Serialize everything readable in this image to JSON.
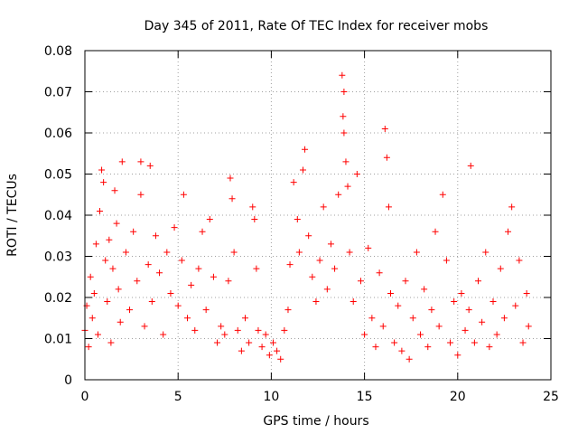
{
  "chart_data": {
    "type": "scatter",
    "title": "Day 345 of 2011, Rate Of TEC Index for receiver mobs",
    "xlabel": "GPS time / hours",
    "ylabel": "ROTI / TECUs",
    "xlim": [
      0,
      25
    ],
    "ylim": [
      0,
      0.08
    ],
    "x_ticks": [
      0,
      5,
      10,
      15,
      20,
      25
    ],
    "x_tick_labels": [
      "0",
      "5",
      "10",
      "15",
      "20",
      "25"
    ],
    "y_ticks": [
      0,
      0.01,
      0.02,
      0.03,
      0.04,
      0.05,
      0.06,
      0.07,
      0.08
    ],
    "y_tick_labels": [
      "0",
      "0.01",
      "0.02",
      "0.03",
      "0.04",
      "0.05",
      "0.06",
      "0.07",
      "0.08"
    ],
    "grid": true,
    "marker": "plus",
    "color": "#ff0000",
    "series": [
      {
        "points": [
          [
            0.0,
            0.012
          ],
          [
            0.1,
            0.018
          ],
          [
            0.2,
            0.008
          ],
          [
            0.3,
            0.025
          ],
          [
            0.4,
            0.015
          ],
          [
            0.5,
            0.021
          ],
          [
            0.6,
            0.033
          ],
          [
            0.7,
            0.011
          ],
          [
            0.8,
            0.041
          ],
          [
            0.9,
            0.051
          ],
          [
            1.0,
            0.048
          ],
          [
            1.1,
            0.029
          ],
          [
            1.2,
            0.019
          ],
          [
            1.3,
            0.034
          ],
          [
            1.4,
            0.009
          ],
          [
            1.5,
            0.027
          ],
          [
            1.6,
            0.046
          ],
          [
            1.7,
            0.038
          ],
          [
            1.8,
            0.022
          ],
          [
            1.9,
            0.014
          ],
          [
            2.0,
            0.053
          ],
          [
            2.2,
            0.031
          ],
          [
            2.4,
            0.017
          ],
          [
            2.6,
            0.036
          ],
          [
            2.8,
            0.024
          ],
          [
            3.0,
            0.045
          ],
          [
            3.0,
            0.053
          ],
          [
            3.2,
            0.013
          ],
          [
            3.4,
            0.028
          ],
          [
            3.5,
            0.052
          ],
          [
            3.6,
            0.019
          ],
          [
            3.8,
            0.035
          ],
          [
            4.0,
            0.026
          ],
          [
            4.2,
            0.011
          ],
          [
            4.4,
            0.031
          ],
          [
            4.6,
            0.021
          ],
          [
            4.8,
            0.037
          ],
          [
            5.0,
            0.018
          ],
          [
            5.2,
            0.029
          ],
          [
            5.3,
            0.045
          ],
          [
            5.5,
            0.015
          ],
          [
            5.7,
            0.023
          ],
          [
            5.9,
            0.012
          ],
          [
            6.1,
            0.027
          ],
          [
            6.3,
            0.036
          ],
          [
            6.5,
            0.017
          ],
          [
            6.7,
            0.039
          ],
          [
            6.9,
            0.025
          ],
          [
            7.1,
            0.009
          ],
          [
            7.3,
            0.013
          ],
          [
            7.5,
            0.011
          ],
          [
            7.7,
            0.024
          ],
          [
            7.8,
            0.049
          ],
          [
            7.9,
            0.044
          ],
          [
            8.0,
            0.031
          ],
          [
            8.2,
            0.012
          ],
          [
            8.4,
            0.007
          ],
          [
            8.6,
            0.015
          ],
          [
            8.8,
            0.009
          ],
          [
            9.0,
            0.042
          ],
          [
            9.1,
            0.039
          ],
          [
            9.2,
            0.027
          ],
          [
            9.3,
            0.012
          ],
          [
            9.5,
            0.008
          ],
          [
            9.7,
            0.011
          ],
          [
            9.9,
            0.006
          ],
          [
            10.1,
            0.009
          ],
          [
            10.3,
            0.007
          ],
          [
            10.5,
            0.005
          ],
          [
            10.7,
            0.012
          ],
          [
            10.9,
            0.017
          ],
          [
            11.0,
            0.028
          ],
          [
            11.2,
            0.048
          ],
          [
            11.4,
            0.039
          ],
          [
            11.5,
            0.031
          ],
          [
            11.7,
            0.051
          ],
          [
            11.8,
            0.056
          ],
          [
            12.0,
            0.035
          ],
          [
            12.2,
            0.025
          ],
          [
            12.4,
            0.019
          ],
          [
            12.6,
            0.029
          ],
          [
            12.8,
            0.042
          ],
          [
            13.0,
            0.022
          ],
          [
            13.2,
            0.033
          ],
          [
            13.4,
            0.027
          ],
          [
            13.6,
            0.045
          ],
          [
            13.8,
            0.074
          ],
          [
            13.9,
            0.07
          ],
          [
            13.85,
            0.064
          ],
          [
            13.9,
            0.06
          ],
          [
            14.0,
            0.053
          ],
          [
            14.1,
            0.047
          ],
          [
            14.2,
            0.031
          ],
          [
            14.4,
            0.019
          ],
          [
            14.6,
            0.05
          ],
          [
            14.8,
            0.024
          ],
          [
            15.0,
            0.011
          ],
          [
            15.2,
            0.032
          ],
          [
            15.4,
            0.015
          ],
          [
            15.6,
            0.008
          ],
          [
            15.8,
            0.026
          ],
          [
            16.0,
            0.013
          ],
          [
            16.1,
            0.061
          ],
          [
            16.2,
            0.054
          ],
          [
            16.3,
            0.042
          ],
          [
            16.4,
            0.021
          ],
          [
            16.6,
            0.009
          ],
          [
            16.8,
            0.018
          ],
          [
            17.0,
            0.007
          ],
          [
            17.2,
            0.024
          ],
          [
            17.4,
            0.005
          ],
          [
            17.6,
            0.015
          ],
          [
            17.8,
            0.031
          ],
          [
            18.0,
            0.011
          ],
          [
            18.2,
            0.022
          ],
          [
            18.4,
            0.008
          ],
          [
            18.6,
            0.017
          ],
          [
            18.8,
            0.036
          ],
          [
            19.0,
            0.013
          ],
          [
            19.2,
            0.045
          ],
          [
            19.4,
            0.029
          ],
          [
            19.6,
            0.009
          ],
          [
            19.8,
            0.019
          ],
          [
            20.0,
            0.006
          ],
          [
            20.2,
            0.021
          ],
          [
            20.4,
            0.012
          ],
          [
            20.6,
            0.017
          ],
          [
            20.7,
            0.052
          ],
          [
            20.9,
            0.009
          ],
          [
            21.1,
            0.024
          ],
          [
            21.3,
            0.014
          ],
          [
            21.5,
            0.031
          ],
          [
            21.7,
            0.008
          ],
          [
            21.9,
            0.019
          ],
          [
            22.1,
            0.011
          ],
          [
            22.3,
            0.027
          ],
          [
            22.5,
            0.015
          ],
          [
            22.7,
            0.036
          ],
          [
            22.9,
            0.042
          ],
          [
            23.1,
            0.018
          ],
          [
            23.3,
            0.029
          ],
          [
            23.5,
            0.009
          ],
          [
            23.7,
            0.021
          ],
          [
            23.8,
            0.013
          ]
        ]
      }
    ]
  }
}
